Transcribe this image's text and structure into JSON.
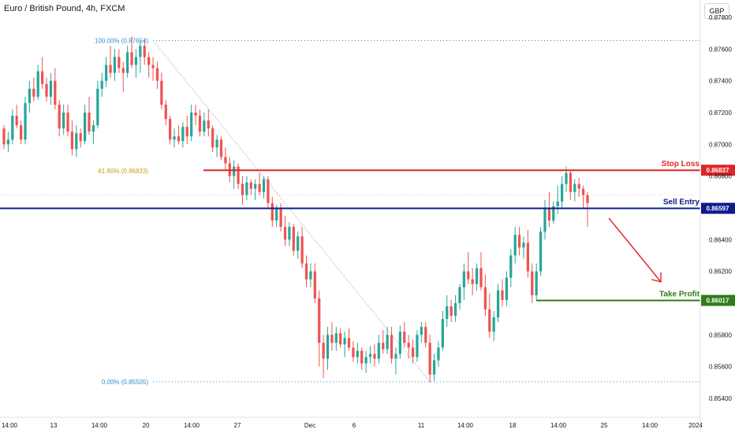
{
  "header": {
    "title": "Euro / British Pound, 4h, FXCM",
    "currency": "GBP"
  },
  "chart_data": {
    "type": "candlestick",
    "y_ticks": [
      "0.87800",
      "0.87600",
      "0.87400",
      "0.87200",
      "0.87000",
      "0.86800",
      "0.86400",
      "0.86200",
      "0.85800",
      "0.85600",
      "0.85400"
    ],
    "x_ticks": [
      "14:00",
      "13",
      "14:00",
      "20",
      "14:00",
      "27",
      "Dec",
      "6",
      "11",
      "14:00",
      "18",
      "14:00",
      "25",
      "14:00",
      "2024"
    ],
    "ylim": [
      0.8534,
      0.8783
    ],
    "levels": [
      {
        "name": "Stop Loss",
        "value": 0.86837,
        "label": "0.86837",
        "color": "#e0252b"
      },
      {
        "name": "Sell Entry",
        "value": 0.86597,
        "label": "0.86597",
        "color": "#0d1b8c"
      },
      {
        "name": "Take Profit",
        "value": 0.86017,
        "label": "0.86017",
        "color": "#2e7d1a"
      }
    ],
    "fibonacci": [
      {
        "label": "100.00% (0.87654)",
        "value": 0.87654
      },
      {
        "label": "61.80% (0.86833)",
        "value": 0.86833
      },
      {
        "label": "0.00% (0.85505)",
        "value": 0.85505
      }
    ],
    "colors": {
      "up": "#26a69a",
      "down": "#ef5350"
    },
    "candles": [
      [
        0.871,
        0.8712,
        0.8697,
        0.87
      ],
      [
        0.87,
        0.8708,
        0.8695,
        0.8703
      ],
      [
        0.8703,
        0.8722,
        0.87,
        0.8718
      ],
      [
        0.8718,
        0.8725,
        0.871,
        0.8712
      ],
      [
        0.8712,
        0.8715,
        0.87,
        0.8703
      ],
      [
        0.8703,
        0.873,
        0.87,
        0.8726
      ],
      [
        0.8726,
        0.874,
        0.872,
        0.8735
      ],
      [
        0.8735,
        0.8742,
        0.8727,
        0.873
      ],
      [
        0.873,
        0.875,
        0.8728,
        0.8746
      ],
      [
        0.8746,
        0.8755,
        0.8735,
        0.8738
      ],
      [
        0.8738,
        0.8742,
        0.8727,
        0.873
      ],
      [
        0.873,
        0.8745,
        0.8725,
        0.874
      ],
      [
        0.874,
        0.8748,
        0.8722,
        0.8725
      ],
      [
        0.8725,
        0.8728,
        0.8705,
        0.871
      ],
      [
        0.871,
        0.8725,
        0.8706,
        0.872
      ],
      [
        0.872,
        0.8725,
        0.8705,
        0.8708
      ],
      [
        0.8708,
        0.8715,
        0.8693,
        0.8697
      ],
      [
        0.8697,
        0.8712,
        0.8692,
        0.8707
      ],
      [
        0.8707,
        0.871,
        0.8698,
        0.8702
      ],
      [
        0.8702,
        0.8725,
        0.87,
        0.872
      ],
      [
        0.872,
        0.873,
        0.8706,
        0.8708
      ],
      [
        0.8708,
        0.8715,
        0.87,
        0.8712
      ],
      [
        0.8712,
        0.874,
        0.871,
        0.8735
      ],
      [
        0.8735,
        0.8745,
        0.873,
        0.874
      ],
      [
        0.874,
        0.8755,
        0.8736,
        0.875
      ],
      [
        0.875,
        0.8762,
        0.8742,
        0.8745
      ],
      [
        0.8745,
        0.876,
        0.874,
        0.8755
      ],
      [
        0.8755,
        0.876,
        0.8745,
        0.8748
      ],
      [
        0.8748,
        0.8752,
        0.8733,
        0.8745
      ],
      [
        0.8745,
        0.8762,
        0.8742,
        0.8758
      ],
      [
        0.8758,
        0.8768,
        0.8748,
        0.875
      ],
      [
        0.875,
        0.876,
        0.8742,
        0.8755
      ],
      [
        0.8755,
        0.8765,
        0.8745,
        0.8762
      ],
      [
        0.8762,
        0.8766,
        0.875,
        0.8755
      ],
      [
        0.8755,
        0.8758,
        0.8742,
        0.875
      ],
      [
        0.875,
        0.8755,
        0.874,
        0.8748
      ],
      [
        0.8748,
        0.8752,
        0.8735,
        0.874
      ],
      [
        0.874,
        0.8745,
        0.8722,
        0.8725
      ],
      [
        0.8725,
        0.8728,
        0.8712,
        0.8716
      ],
      [
        0.8716,
        0.8718,
        0.87,
        0.8703
      ],
      [
        0.8703,
        0.871,
        0.8698,
        0.8705
      ],
      [
        0.8705,
        0.8712,
        0.87,
        0.8702
      ],
      [
        0.8702,
        0.8714,
        0.8698,
        0.8711
      ],
      [
        0.8711,
        0.8718,
        0.87,
        0.8705
      ],
      [
        0.8705,
        0.8725,
        0.8702,
        0.872
      ],
      [
        0.872,
        0.8725,
        0.8712,
        0.8718
      ],
      [
        0.8718,
        0.8722,
        0.8705,
        0.8708
      ],
      [
        0.8708,
        0.872,
        0.8705,
        0.8715
      ],
      [
        0.8715,
        0.8722,
        0.8705,
        0.871
      ],
      [
        0.871,
        0.8712,
        0.8695,
        0.8698
      ],
      [
        0.8698,
        0.8706,
        0.8692,
        0.8703
      ],
      [
        0.8703,
        0.8705,
        0.869,
        0.8692
      ],
      [
        0.8692,
        0.8698,
        0.8684,
        0.8688
      ],
      [
        0.8688,
        0.8692,
        0.8676,
        0.868
      ],
      [
        0.868,
        0.869,
        0.8672,
        0.8686
      ],
      [
        0.8686,
        0.8688,
        0.8672,
        0.8675
      ],
      [
        0.8675,
        0.868,
        0.8662,
        0.8668
      ],
      [
        0.8668,
        0.868,
        0.8665,
        0.8676
      ],
      [
        0.8676,
        0.8678,
        0.8668,
        0.8672
      ],
      [
        0.8672,
        0.8678,
        0.8665,
        0.8675
      ],
      [
        0.8675,
        0.8682,
        0.8668,
        0.867
      ],
      [
        0.867,
        0.868,
        0.8666,
        0.8678
      ],
      [
        0.8678,
        0.868,
        0.866,
        0.8663
      ],
      [
        0.8663,
        0.8667,
        0.8648,
        0.8652
      ],
      [
        0.8652,
        0.8662,
        0.8648,
        0.866
      ],
      [
        0.866,
        0.8663,
        0.8645,
        0.8648
      ],
      [
        0.8648,
        0.8655,
        0.8636,
        0.864
      ],
      [
        0.864,
        0.8651,
        0.8636,
        0.8648
      ],
      [
        0.8648,
        0.865,
        0.863,
        0.8633
      ],
      [
        0.8633,
        0.8645,
        0.8628,
        0.8642
      ],
      [
        0.8642,
        0.8648,
        0.8622,
        0.8625
      ],
      [
        0.8625,
        0.863,
        0.861,
        0.8615
      ],
      [
        0.8615,
        0.8625,
        0.861,
        0.862
      ],
      [
        0.862,
        0.8625,
        0.86,
        0.8603
      ],
      [
        0.8603,
        0.8608,
        0.856,
        0.8575
      ],
      [
        0.8575,
        0.858,
        0.8553,
        0.8565
      ],
      [
        0.8565,
        0.8585,
        0.8558,
        0.858
      ],
      [
        0.858,
        0.8588,
        0.857,
        0.8575
      ],
      [
        0.8575,
        0.8585,
        0.857,
        0.8581
      ],
      [
        0.8581,
        0.8584,
        0.8572,
        0.8574
      ],
      [
        0.8574,
        0.8582,
        0.8566,
        0.8578
      ],
      [
        0.8578,
        0.8584,
        0.857,
        0.8572
      ],
      [
        0.8572,
        0.8576,
        0.8563,
        0.8566
      ],
      [
        0.8566,
        0.8575,
        0.8562,
        0.857
      ],
      [
        0.857,
        0.8572,
        0.8558,
        0.8562
      ],
      [
        0.8562,
        0.857,
        0.8556,
        0.8566
      ],
      [
        0.8566,
        0.8573,
        0.8562,
        0.8568
      ],
      [
        0.8568,
        0.8574,
        0.856,
        0.8565
      ],
      [
        0.8565,
        0.858,
        0.8562,
        0.8575
      ],
      [
        0.8575,
        0.8583,
        0.8568,
        0.8571
      ],
      [
        0.8571,
        0.8585,
        0.8568,
        0.858
      ],
      [
        0.858,
        0.8585,
        0.8562,
        0.8565
      ],
      [
        0.8565,
        0.8572,
        0.8555,
        0.8568
      ],
      [
        0.8568,
        0.8586,
        0.8565,
        0.8582
      ],
      [
        0.8582,
        0.8588,
        0.8572,
        0.8575
      ],
      [
        0.8575,
        0.858,
        0.8565,
        0.8572
      ],
      [
        0.8572,
        0.8577,
        0.8562,
        0.8566
      ],
      [
        0.8566,
        0.8583,
        0.8563,
        0.858
      ],
      [
        0.858,
        0.8588,
        0.8575,
        0.8585
      ],
      [
        0.8585,
        0.8588,
        0.8572,
        0.8575
      ],
      [
        0.8575,
        0.858,
        0.855,
        0.8555
      ],
      [
        0.8555,
        0.8568,
        0.8551,
        0.8564
      ],
      [
        0.8564,
        0.8576,
        0.856,
        0.8572
      ],
      [
        0.8572,
        0.8595,
        0.857,
        0.859
      ],
      [
        0.859,
        0.8605,
        0.8585,
        0.8598
      ],
      [
        0.8598,
        0.8602,
        0.8588,
        0.8592
      ],
      [
        0.8592,
        0.8605,
        0.8588,
        0.86
      ],
      [
        0.86,
        0.8612,
        0.8596,
        0.861
      ],
      [
        0.861,
        0.8625,
        0.8602,
        0.862
      ],
      [
        0.862,
        0.8632,
        0.8612,
        0.8615
      ],
      [
        0.8615,
        0.8622,
        0.8605,
        0.8612
      ],
      [
        0.8612,
        0.8625,
        0.8608,
        0.8622
      ],
      [
        0.8622,
        0.8632,
        0.8608,
        0.861
      ],
      [
        0.861,
        0.8618,
        0.8592,
        0.8596
      ],
      [
        0.8596,
        0.8606,
        0.8578,
        0.8582
      ],
      [
        0.8582,
        0.8595,
        0.8576,
        0.8591
      ],
      [
        0.8591,
        0.8612,
        0.8588,
        0.8608
      ],
      [
        0.8608,
        0.8615,
        0.8598,
        0.8602
      ],
      [
        0.8602,
        0.862,
        0.8598,
        0.8616
      ],
      [
        0.8616,
        0.8634,
        0.861,
        0.863
      ],
      [
        0.863,
        0.8648,
        0.8625,
        0.8643
      ],
      [
        0.8643,
        0.8648,
        0.863,
        0.8635
      ],
      [
        0.8635,
        0.8642,
        0.8628,
        0.8638
      ],
      [
        0.8638,
        0.8646,
        0.8616,
        0.862
      ],
      [
        0.862,
        0.8625,
        0.86,
        0.8605
      ],
      [
        0.8605,
        0.8625,
        0.8602,
        0.862
      ],
      [
        0.862,
        0.8648,
        0.8617,
        0.8645
      ],
      [
        0.8645,
        0.8665,
        0.864,
        0.866
      ],
      [
        0.866,
        0.867,
        0.8648,
        0.8652
      ],
      [
        0.8652,
        0.8664,
        0.865,
        0.8661
      ],
      [
        0.8661,
        0.8674,
        0.8656,
        0.8664
      ],
      [
        0.8664,
        0.868,
        0.866,
        0.8675
      ],
      [
        0.8675,
        0.8686,
        0.867,
        0.8682
      ],
      [
        0.8682,
        0.8684,
        0.8665,
        0.867
      ],
      [
        0.867,
        0.8678,
        0.8664,
        0.8675
      ],
      [
        0.8675,
        0.8679,
        0.8667,
        0.8672
      ],
      [
        0.8672,
        0.8674,
        0.866,
        0.8668
      ],
      [
        0.8668,
        0.867,
        0.8648,
        0.8663
      ]
    ]
  }
}
